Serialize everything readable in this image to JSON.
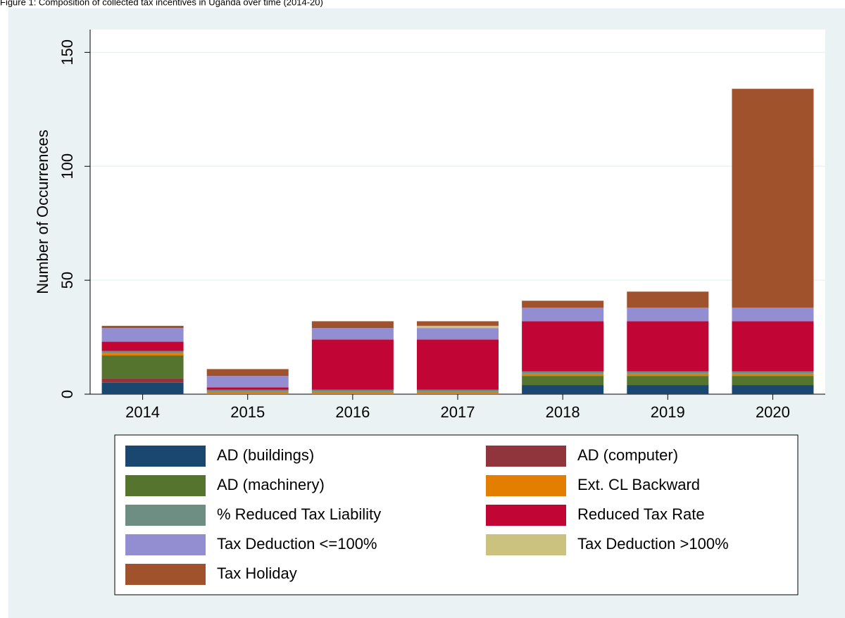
{
  "chart_data": {
    "type": "stacked_bar",
    "title": "Figure 1: Composition of collected tax incentives in Uganda over time (2014-20)",
    "y_label": "Number of Occurrences",
    "categories": [
      "2014",
      "2015",
      "2016",
      "2017",
      "2018",
      "2019",
      "2020"
    ],
    "series": [
      {
        "name": "AD (buildings)",
        "color": "#1a476f",
        "values": [
          5,
          0,
          0,
          0,
          4,
          4,
          4
        ]
      },
      {
        "name": "AD (computer)",
        "color": "#90353b",
        "values": [
          2,
          0,
          0,
          0,
          0,
          0,
          0
        ]
      },
      {
        "name": "AD (machinery)",
        "color": "#55752f",
        "values": [
          10,
          0,
          0,
          0,
          4,
          4,
          4
        ]
      },
      {
        "name": "Ext. CL Backward",
        "color": "#e37e00",
        "values": [
          1,
          1,
          1,
          1,
          1,
          1,
          1
        ]
      },
      {
        "name": "% Reduced Tax Liability",
        "color": "#6e8e84",
        "values": [
          1,
          1,
          1,
          1,
          1,
          1,
          1
        ]
      },
      {
        "name": "Reduced Tax Rate",
        "color": "#c10534",
        "values": [
          4,
          1,
          22,
          22,
          22,
          22,
          22
        ]
      },
      {
        "name": "Tax Deduction <=100%",
        "color": "#938dd2",
        "values": [
          6,
          5,
          5,
          5,
          6,
          6,
          6
        ]
      },
      {
        "name": "Tax Deduction >100%",
        "color": "#cac27e",
        "values": [
          0,
          0,
          0,
          1,
          0,
          0,
          0
        ]
      },
      {
        "name": "Tax Holiday",
        "color": "#a0522d",
        "values": [
          1,
          3,
          3,
          2,
          3,
          7,
          96
        ]
      }
    ],
    "ylim": [
      0,
      160
    ],
    "yticks": [
      0,
      50,
      100,
      150
    ],
    "grid": true
  }
}
